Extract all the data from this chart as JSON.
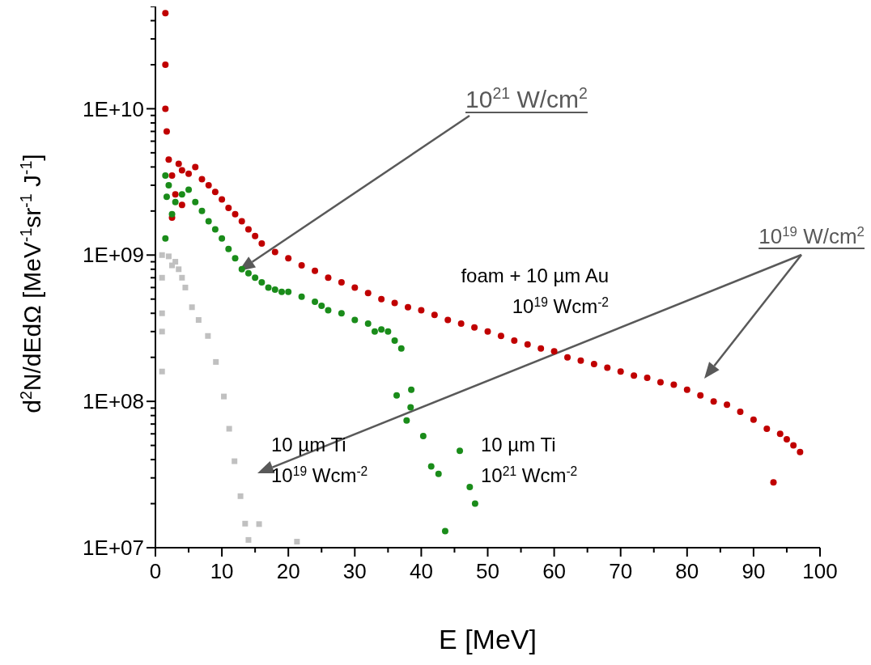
{
  "chart_data": {
    "type": "scatter",
    "xlabel": "E [MeV]",
    "ylabel": "d$^{2}$N/dEdΩ [MeV$^{-1}$sr$^{-1}$ J$^{-1}$]",
    "log": "y",
    "xlim": [
      0,
      100
    ],
    "ylim": [
      10000000,
      50000000000
    ],
    "xticks": [
      0,
      {
        "value": 5,
        "label": null
      },
      10,
      {
        "value": 15,
        "label": null
      },
      20,
      {
        "value": 25,
        "label": null
      },
      30,
      {
        "value": 35,
        "label": null
      },
      40,
      {
        "value": 45,
        "label": null
      },
      50,
      {
        "value": 55,
        "label": null
      },
      60,
      {
        "value": 65,
        "label": null
      },
      70,
      {
        "value": 75,
        "label": null
      },
      80,
      {
        "value": 85,
        "label": null
      },
      90,
      {
        "value": 95,
        "label": null
      },
      100
    ],
    "yticks": [
      {
        "value": 10000000,
        "label": "1E+07"
      },
      {
        "value": 20000000,
        "label": null
      },
      {
        "value": 30000000,
        "label": null
      },
      {
        "value": 40000000,
        "label": null
      },
      {
        "value": 50000000,
        "label": null
      },
      {
        "value": 60000000,
        "label": null
      },
      {
        "value": 70000000,
        "label": null
      },
      {
        "value": 80000000,
        "label": null
      },
      {
        "value": 90000000,
        "label": null
      },
      {
        "value": 100000000,
        "label": "1E+08"
      },
      {
        "value": 200000000,
        "label": null
      },
      {
        "value": 300000000,
        "label": null
      },
      {
        "value": 400000000,
        "label": null
      },
      {
        "value": 500000000,
        "label": null
      },
      {
        "value": 600000000,
        "label": null
      },
      {
        "value": 700000000,
        "label": null
      },
      {
        "value": 800000000,
        "label": null
      },
      {
        "value": 900000000,
        "label": null
      },
      {
        "value": 1000000000,
        "label": "1E+09"
      },
      {
        "value": 2000000000,
        "label": null
      },
      {
        "value": 3000000000,
        "label": null
      },
      {
        "value": 4000000000,
        "label": null
      },
      {
        "value": 5000000000,
        "label": null
      },
      {
        "value": 6000000000,
        "label": null
      },
      {
        "value": 7000000000,
        "label": null
      },
      {
        "value": 8000000000,
        "label": null
      },
      {
        "value": 9000000000,
        "label": null
      },
      {
        "value": 10000000000,
        "label": "1E+10"
      },
      {
        "value": 20000000000,
        "label": null
      },
      {
        "value": 30000000000,
        "label": null
      },
      {
        "value": 40000000000,
        "label": null
      },
      {
        "value": 50000000000,
        "label": null
      }
    ],
    "series": [
      {
        "color": "#c00000",
        "marker": "circle",
        "x": [
          1.5,
          1.5,
          1.5,
          1.7,
          2,
          2.5,
          2.5,
          3,
          3.5,
          4,
          4,
          5,
          6,
          7,
          8,
          9,
          10,
          11,
          12,
          13,
          14,
          15,
          16,
          18,
          20,
          22,
          24,
          26,
          28,
          30,
          32,
          34,
          36,
          38,
          40,
          42,
          44,
          46,
          48,
          50,
          52,
          54,
          56,
          58,
          60,
          62,
          64,
          66,
          68,
          70,
          72,
          74,
          76,
          78,
          80,
          82,
          84,
          86,
          88,
          90,
          92,
          93,
          94,
          95,
          96,
          97
        ],
        "values": [
          45000000000,
          20000000000,
          10000000000,
          7000000000,
          4500000000,
          3500000000,
          1800000000,
          2600000000,
          4200000000,
          3800000000,
          2200000000,
          3600000000,
          4000000000,
          3300000000,
          3000000000,
          2700000000,
          2400000000,
          2100000000,
          1900000000,
          1700000000,
          1500000000,
          1350000000,
          1200000000,
          1050000000,
          950000000,
          850000000,
          780000000,
          700000000,
          650000000,
          600000000,
          550000000,
          500000000,
          470000000,
          440000000,
          420000000,
          390000000,
          360000000,
          340000000,
          320000000,
          300000000,
          280000000,
          260000000,
          245000000,
          230000000,
          220000000,
          200000000,
          190000000,
          180000000,
          170000000,
          160000000,
          150000000,
          145000000,
          135000000,
          130000000,
          120000000,
          110000000,
          100000000,
          95000000,
          85000000,
          75000000,
          65000000,
          28000000,
          60000000,
          55000000,
          50000000,
          45000000
        ]
      },
      {
        "color": "#1a8c1a",
        "marker": "circle",
        "x": [
          1.5,
          1.5,
          1.7,
          2,
          2.5,
          3,
          4,
          5,
          6,
          7,
          8,
          9,
          10,
          11,
          12,
          13,
          14,
          15,
          16,
          17,
          18,
          19,
          20,
          22,
          24,
          25,
          26,
          28,
          30,
          32,
          33,
          34,
          35,
          36,
          36.3,
          37,
          37.8,
          38.4,
          38.5,
          40.3,
          41.5,
          42.6,
          43.6,
          45.8,
          47.3,
          48.1
        ],
        "values": [
          3500000000,
          1300000000,
          2500000000,
          3000000000,
          1900000000,
          2300000000,
          2600000000,
          2800000000,
          2300000000,
          2000000000,
          1700000000,
          1500000000,
          1300000000,
          1100000000,
          950000000,
          800000000,
          750000000,
          700000000,
          650000000,
          600000000,
          580000000,
          560000000,
          560000000,
          520000000,
          480000000,
          450000000,
          420000000,
          400000000,
          360000000,
          340000000,
          300000000,
          310000000,
          300000000,
          260000000,
          110000000,
          230000000,
          74000000,
          91000000,
          120000000,
          58000000,
          36000000,
          32000000,
          13000000,
          46000000,
          26000000,
          20000000
        ]
      },
      {
        "color": "#c0c0c0",
        "marker": "square",
        "x": [
          1,
          1,
          1,
          1,
          1,
          2,
          2.5,
          3,
          3.5,
          4,
          4.5,
          5.5,
          6.5,
          7.9,
          9.1,
          10.3,
          11.1,
          11.9,
          12.8,
          13.5,
          14,
          15.6,
          21.3
        ],
        "values": [
          1000000000,
          700000000,
          400000000,
          300000000,
          160000000,
          980000000,
          850000000,
          900000000,
          800000000,
          700000000,
          600000000,
          440000000,
          360000000,
          280000000,
          186000000,
          108000000,
          65000000,
          39000000,
          22500000,
          14600000,
          11300000,
          14500000,
          11000000
        ]
      }
    ],
    "annotations": [
      "10$^{21}$ W/cm$^{2}$",
      "10$^{19}$ W/cm$^{2}$",
      "foam + 10 µm Au\n10$^{19}$ Wcm$^{-2}$",
      "10 µm Ti\n10$^{19}$ Wcm$^{-2}$",
      "10 µm Ti\n10$^{21}$ Wcm$^{-2}$"
    ]
  }
}
